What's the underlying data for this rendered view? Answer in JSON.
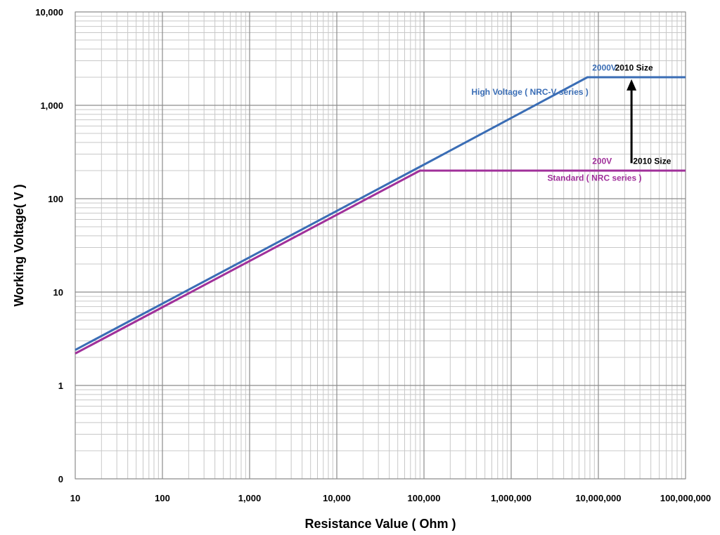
{
  "chart_data": {
    "type": "line",
    "title": "",
    "xlabel": "Resistance Value ( Ohm )",
    "ylabel": "Working Voltage( V )",
    "x_scale": "log",
    "y_scale": "log",
    "xlim": [
      10,
      100000000
    ],
    "ylim": [
      0.1,
      10000
    ],
    "grid": true,
    "x_ticks": [
      {
        "value": 10,
        "label": "10"
      },
      {
        "value": 100,
        "label": "100"
      },
      {
        "value": 1000,
        "label": "1,000"
      },
      {
        "value": 10000,
        "label": "10,000"
      },
      {
        "value": 100000,
        "label": "100,000"
      },
      {
        "value": 1000000,
        "label": "1,000,000"
      },
      {
        "value": 10000000,
        "label": "10,000,000"
      },
      {
        "value": 100000000,
        "label": "100,000,000"
      }
    ],
    "y_ticks": [
      {
        "value": 0.1,
        "label": "0"
      },
      {
        "value": 1,
        "label": "1"
      },
      {
        "value": 10,
        "label": "10"
      },
      {
        "value": 100,
        "label": "100"
      },
      {
        "value": 1000,
        "label": "1,000"
      },
      {
        "value": 10000,
        "label": "10,000"
      }
    ],
    "series": [
      {
        "name": "High Voltage ( NRC-V series )",
        "color": "#3a6db5",
        "points": [
          [
            10,
            2.4
          ],
          [
            90000,
            220
          ],
          [
            7500000,
            2000
          ],
          [
            100000000,
            2000
          ]
        ]
      },
      {
        "name": "Standard ( NRC series )",
        "color": "#a0309a",
        "points": [
          [
            10,
            2.2
          ],
          [
            90000,
            200
          ],
          [
            100000000,
            200
          ]
        ]
      }
    ],
    "annotations": [
      {
        "text": "High Voltage ( NRC-V series )",
        "x": 350000,
        "y": 1300,
        "color": "#3a6db5",
        "anchor": "start"
      },
      {
        "text": "2000V",
        "x": 8500000,
        "y": 2350,
        "color": "#3a6db5",
        "anchor": "start"
      },
      {
        "text": "2010 Size",
        "x": 15500000,
        "y": 2350,
        "color": "#000000",
        "anchor": "start"
      },
      {
        "text": "200V",
        "x": 8500000,
        "y": 236,
        "color": "#a0309a",
        "anchor": "start"
      },
      {
        "text": "2010 Size",
        "x": 25000000,
        "y": 236,
        "color": "#000000",
        "anchor": "start"
      },
      {
        "text": "Standard ( NRC series )",
        "x": 2600000,
        "y": 155,
        "color": "#a0309a",
        "anchor": "start"
      }
    ],
    "arrow": {
      "x": 24000000,
      "y_from": 240,
      "y_to": 1900,
      "color": "#000000"
    }
  }
}
